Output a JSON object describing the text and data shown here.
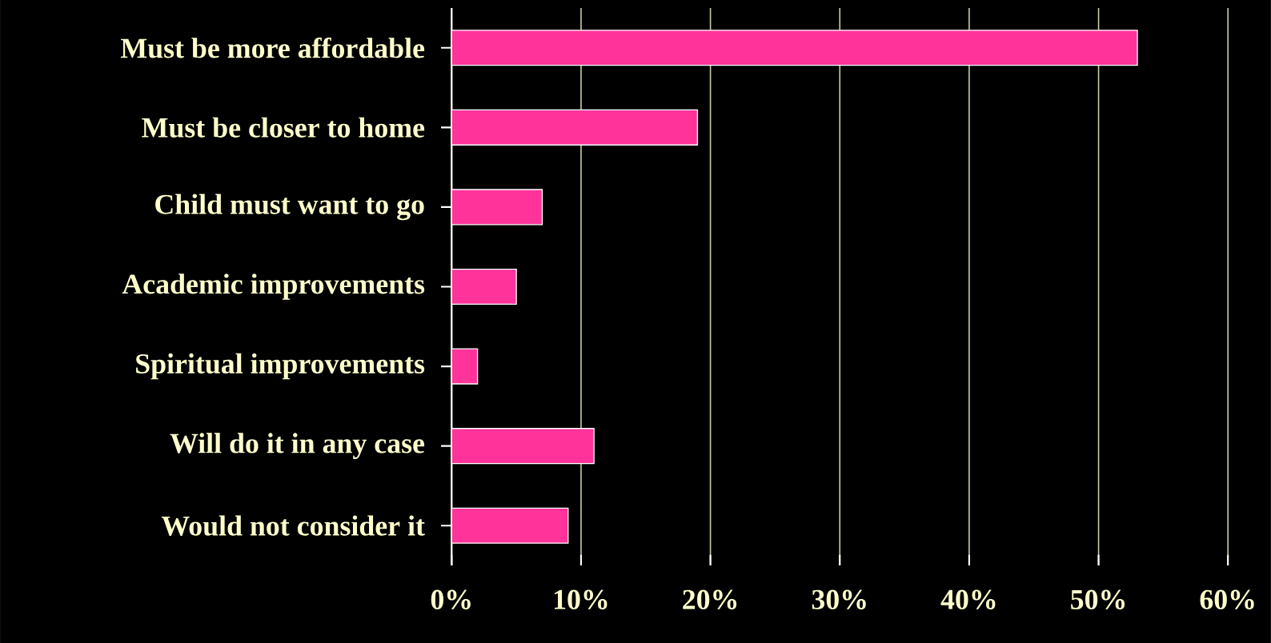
{
  "chart_data": {
    "type": "bar",
    "orientation": "horizontal",
    "categories": [
      "Must be more affordable",
      "Must be closer to home",
      "Child must want to go",
      "Academic improvements",
      "Spiritual improvements",
      "Will do it in any case",
      "Would not consider it"
    ],
    "values": [
      53,
      19,
      7,
      5,
      2,
      11,
      9
    ],
    "color": "#ff3399",
    "xlim": [
      0,
      60
    ],
    "xticks": [
      {
        "value": 0,
        "label": "0%"
      },
      {
        "value": 10,
        "label": "10%"
      },
      {
        "value": 20,
        "label": "20%"
      },
      {
        "value": 30,
        "label": "30%"
      },
      {
        "value": 40,
        "label": "40%"
      },
      {
        "value": 50,
        "label": "50%"
      },
      {
        "value": 60,
        "label": "60%"
      }
    ],
    "grid": "x"
  }
}
